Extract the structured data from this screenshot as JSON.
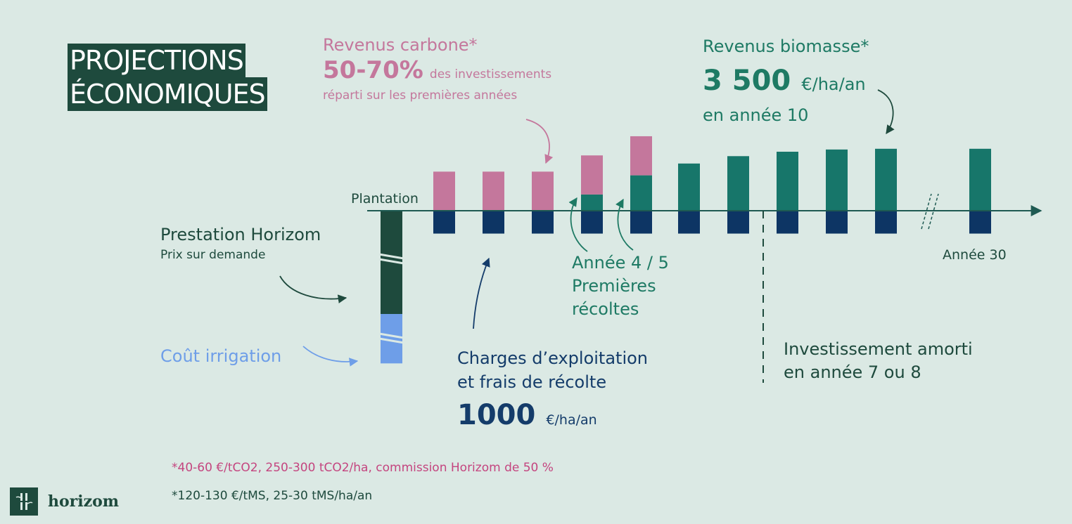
{
  "title": {
    "line1": "PROJECTIONS",
    "line2": "ÉCONOMIQUES"
  },
  "carbon": {
    "label": "Revenus carbone*",
    "pct": "50-70%",
    "pct_suffix": "des investissements",
    "line3": "réparti sur les premières années"
  },
  "biomass": {
    "label": "Revenus biomasse*",
    "value": "3 500",
    "unit": "€/ha/an",
    "line3": "en année 10"
  },
  "plantation_label": "Plantation",
  "prestation": {
    "label": "Prestation Horizom",
    "sub": "Prix sur demande"
  },
  "irrigation_label": "Coût irrigation",
  "harvest": {
    "line1": "Année 4 / 5",
    "line2": "Premières",
    "line3": "récoltes"
  },
  "charges": {
    "line1": "Charges d’exploitation",
    "line2": "et frais de récolte",
    "value": "1000",
    "unit": "€/ha/an"
  },
  "amorti": {
    "line1": "Investissement amorti",
    "line2": "en année 7 ou 8"
  },
  "year30_label": "Année 30",
  "footnotes": {
    "carbon": "*40-60 €/tCO2, 250-300 tCO2/ha, commission Horizom de 50 %",
    "biomass": "*120-130 €/tMS, 25-30 tMS/ha/an"
  },
  "logo": {
    "text": "horizom"
  },
  "colors": {
    "background": "#dbe9e4",
    "carbon": "#c4779c",
    "biomass": "#17766a",
    "charges": "#0d3564",
    "prestation": "#1e4a3d",
    "irrigation": "#6e9ee8",
    "axis": "#1e5a52"
  },
  "chart_data": {
    "type": "bar",
    "note": "relative magnitudes only; no numeric axis shown",
    "bars": [
      {
        "year": 1,
        "carbon": 0.53,
        "biomass": 0,
        "charges": 0.31
      },
      {
        "year": 2,
        "carbon": 0.53,
        "biomass": 0,
        "charges": 0.31
      },
      {
        "year": 3,
        "carbon": 0.53,
        "biomass": 0,
        "charges": 0.31
      },
      {
        "year": 4,
        "carbon": 0.53,
        "biomass": 0.22,
        "charges": 0.31
      },
      {
        "year": 5,
        "carbon": 0.53,
        "biomass": 0.48,
        "charges": 0.31
      },
      {
        "year": 6,
        "carbon": 0,
        "biomass": 0.64,
        "charges": 0.31
      },
      {
        "year": 7,
        "carbon": 0,
        "biomass": 0.74,
        "charges": 0.31
      },
      {
        "year": 8,
        "carbon": 0,
        "biomass": 0.8,
        "charges": 0.31
      },
      {
        "year": 9,
        "carbon": 0,
        "biomass": 0.83,
        "charges": 0.31
      },
      {
        "year": 10,
        "carbon": 0,
        "biomass": 0.84,
        "charges": 0.31
      },
      {
        "year": 30,
        "carbon": 0,
        "biomass": 0.84,
        "charges": 0.31
      }
    ],
    "initial_investment": {
      "prestation": 1.4,
      "irrigation": 0.67
    }
  }
}
